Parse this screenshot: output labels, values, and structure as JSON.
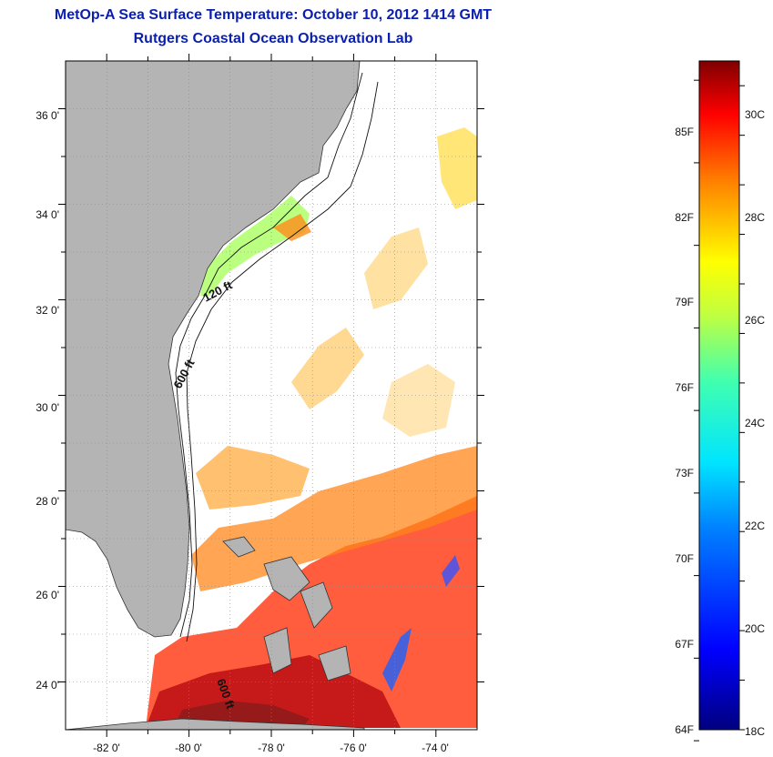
{
  "title": "MetOp-A Sea Surface Temperature:  October 10, 2012 1414 GMT",
  "subtitle": "Rutgers Coastal Ocean Observation Lab",
  "map": {
    "lon_range": [
      -83,
      -73
    ],
    "lat_range": [
      23,
      37
    ],
    "lon_ticks": [
      "-82 0'",
      "-80 0'",
      "-78 0'",
      "-76 0'",
      "-74 0'"
    ],
    "lat_ticks": [
      "36 0'",
      "34 0'",
      "32 0'",
      "30 0'",
      "28 0'",
      "26 0'",
      "24 0'"
    ],
    "contour_labels": [
      "120 ft",
      "600 ft",
      "600 ft"
    ],
    "land_color": "#b4b4b4",
    "no_data_color": "#ffffff"
  },
  "colorbar": {
    "fahrenheit_labels": [
      "85F",
      "82F",
      "79F",
      "76F",
      "73F",
      "70F",
      "67F",
      "64F"
    ],
    "celsius_labels": [
      "30C",
      "28C",
      "26C",
      "24C",
      "22C",
      "20C",
      "18C"
    ],
    "min_c": 18,
    "max_c": 31.5
  }
}
